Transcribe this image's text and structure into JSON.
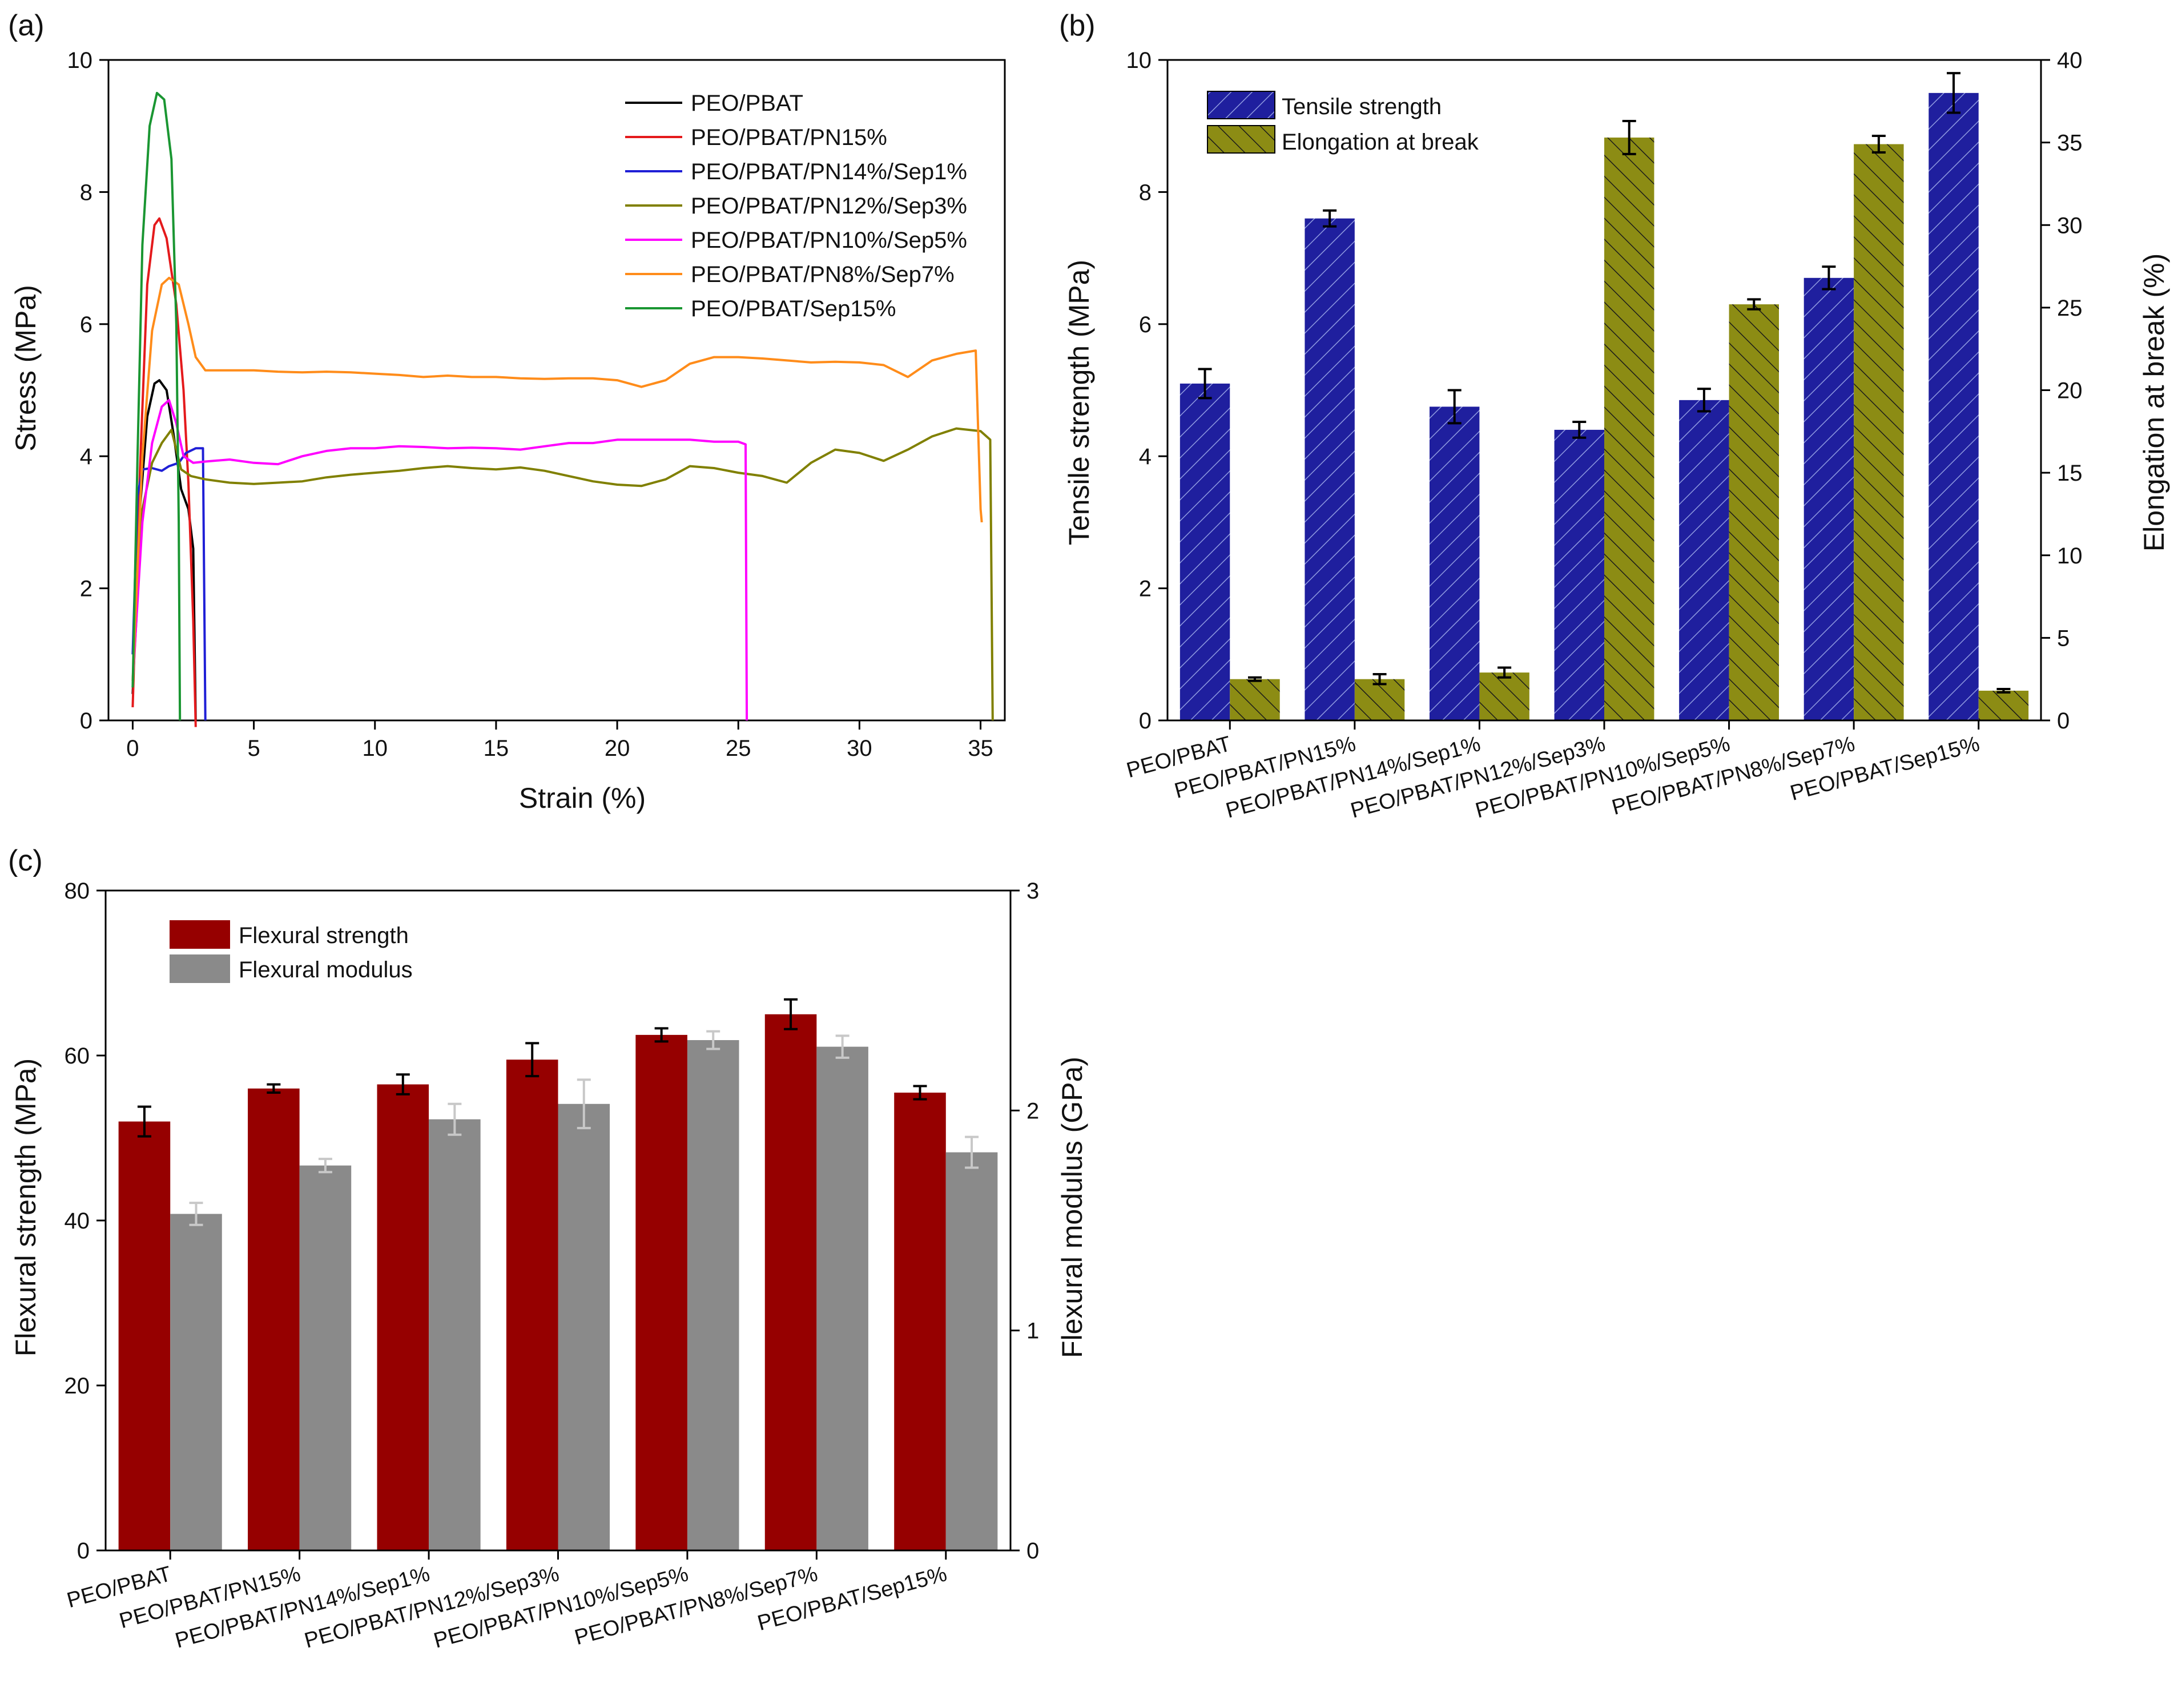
{
  "figure": {
    "background": "#ffffff"
  },
  "panel_a": {
    "label": "(a)",
    "chart_data": {
      "type": "line",
      "xlabel": "Strain (%)",
      "ylabel": "Stress (MPa)",
      "xlim": [
        -1,
        36
      ],
      "ylim": [
        0,
        10
      ],
      "xticks": [
        0,
        5,
        10,
        15,
        20,
        25,
        30,
        35
      ],
      "yticks": [
        0,
        2,
        4,
        6,
        8,
        10
      ],
      "series": [
        {
          "name": "PEO/PBAT",
          "color": "#000000",
          "points": [
            [
              0,
              0.4
            ],
            [
              0.3,
              3.2
            ],
            [
              0.6,
              4.6
            ],
            [
              0.9,
              5.1
            ],
            [
              1.1,
              5.15
            ],
            [
              1.4,
              5.0
            ],
            [
              1.7,
              4.3
            ],
            [
              2.0,
              3.5
            ],
            [
              2.3,
              3.2
            ],
            [
              2.5,
              2.6
            ],
            [
              2.6,
              0
            ]
          ]
        },
        {
          "name": "PEO/PBAT/PN15%",
          "color": "#e41a1c",
          "points": [
            [
              0,
              0.2
            ],
            [
              0.3,
              3.8
            ],
            [
              0.6,
              6.6
            ],
            [
              0.9,
              7.5
            ],
            [
              1.1,
              7.6
            ],
            [
              1.4,
              7.3
            ],
            [
              1.8,
              6.3
            ],
            [
              2.1,
              5.0
            ],
            [
              2.3,
              3.6
            ],
            [
              2.5,
              1.5
            ],
            [
              2.6,
              -0.1
            ]
          ]
        },
        {
          "name": "PEO/PBAT/PN14%/Sep1%",
          "color": "#1f1fd6",
          "points": [
            [
              0,
              1.0
            ],
            [
              0.2,
              3.4
            ],
            [
              0.4,
              3.8
            ],
            [
              0.8,
              3.82
            ],
            [
              1.2,
              3.78
            ],
            [
              1.5,
              3.85
            ],
            [
              1.9,
              3.9
            ],
            [
              2.2,
              4.05
            ],
            [
              2.6,
              4.12
            ],
            [
              2.9,
              4.12
            ],
            [
              3.0,
              0
            ]
          ]
        },
        {
          "name": "PEO/PBAT/PN12%/Sep3%",
          "color": "#808000",
          "points": [
            [
              0,
              0.5
            ],
            [
              0.4,
              3.2
            ],
            [
              0.8,
              3.9
            ],
            [
              1.2,
              4.2
            ],
            [
              1.6,
              4.4
            ],
            [
              2.0,
              3.8
            ],
            [
              2.4,
              3.7
            ],
            [
              3,
              3.65
            ],
            [
              4,
              3.6
            ],
            [
              5,
              3.58
            ],
            [
              6,
              3.6
            ],
            [
              7,
              3.62
            ],
            [
              8,
              3.68
            ],
            [
              9,
              3.72
            ],
            [
              10,
              3.75
            ],
            [
              11,
              3.78
            ],
            [
              12,
              3.82
            ],
            [
              13,
              3.85
            ],
            [
              14,
              3.82
            ],
            [
              15,
              3.8
            ],
            [
              16,
              3.83
            ],
            [
              17,
              3.78
            ],
            [
              18,
              3.7
            ],
            [
              19,
              3.62
            ],
            [
              20,
              3.57
            ],
            [
              21,
              3.55
            ],
            [
              22,
              3.65
            ],
            [
              23,
              3.85
            ],
            [
              24,
              3.82
            ],
            [
              25,
              3.75
            ],
            [
              26,
              3.7
            ],
            [
              27,
              3.6
            ],
            [
              28,
              3.9
            ],
            [
              29,
              4.1
            ],
            [
              30,
              4.05
            ],
            [
              31,
              3.93
            ],
            [
              32,
              4.1
            ],
            [
              33,
              4.3
            ],
            [
              34,
              4.42
            ],
            [
              35,
              4.38
            ],
            [
              35.4,
              4.25
            ],
            [
              35.5,
              0
            ]
          ]
        },
        {
          "name": "PEO/PBAT/PN10%/Sep5%",
          "color": "#ff00ff",
          "points": [
            [
              0,
              0.6
            ],
            [
              0.4,
              3.0
            ],
            [
              0.8,
              4.2
            ],
            [
              1.2,
              4.75
            ],
            [
              1.5,
              4.85
            ],
            [
              1.8,
              4.5
            ],
            [
              2.1,
              4.0
            ],
            [
              2.5,
              3.9
            ],
            [
              3,
              3.92
            ],
            [
              4,
              3.95
            ],
            [
              5,
              3.9
            ],
            [
              6,
              3.88
            ],
            [
              7,
              4.0
            ],
            [
              8,
              4.08
            ],
            [
              9,
              4.12
            ],
            [
              10,
              4.12
            ],
            [
              11,
              4.15
            ],
            [
              12,
              4.14
            ],
            [
              13,
              4.12
            ],
            [
              14,
              4.13
            ],
            [
              15,
              4.12
            ],
            [
              16,
              4.1
            ],
            [
              17,
              4.15
            ],
            [
              18,
              4.2
            ],
            [
              19,
              4.2
            ],
            [
              20,
              4.25
            ],
            [
              21,
              4.25
            ],
            [
              22,
              4.25
            ],
            [
              23,
              4.25
            ],
            [
              24,
              4.22
            ],
            [
              25,
              4.22
            ],
            [
              25.3,
              4.18
            ],
            [
              25.35,
              0
            ]
          ]
        },
        {
          "name": "PEO/PBAT/PN8%/Sep7%",
          "color": "#ff8c1a",
          "points": [
            [
              0,
              0.6
            ],
            [
              0.4,
              4.0
            ],
            [
              0.8,
              5.9
            ],
            [
              1.2,
              6.6
            ],
            [
              1.5,
              6.7
            ],
            [
              1.9,
              6.6
            ],
            [
              2.3,
              6.0
            ],
            [
              2.6,
              5.5
            ],
            [
              3,
              5.3
            ],
            [
              4,
              5.3
            ],
            [
              5,
              5.3
            ],
            [
              6,
              5.28
            ],
            [
              7,
              5.27
            ],
            [
              8,
              5.28
            ],
            [
              9,
              5.27
            ],
            [
              10,
              5.25
            ],
            [
              11,
              5.23
            ],
            [
              12,
              5.2
            ],
            [
              13,
              5.22
            ],
            [
              14,
              5.2
            ],
            [
              15,
              5.2
            ],
            [
              16,
              5.18
            ],
            [
              17,
              5.17
            ],
            [
              18,
              5.18
            ],
            [
              19,
              5.18
            ],
            [
              20,
              5.15
            ],
            [
              21,
              5.05
            ],
            [
              22,
              5.15
            ],
            [
              23,
              5.4
            ],
            [
              24,
              5.5
            ],
            [
              25,
              5.5
            ],
            [
              26,
              5.48
            ],
            [
              27,
              5.45
            ],
            [
              28,
              5.42
            ],
            [
              29,
              5.43
            ],
            [
              30,
              5.42
            ],
            [
              31,
              5.38
            ],
            [
              32,
              5.2
            ],
            [
              33,
              5.45
            ],
            [
              34,
              5.55
            ],
            [
              34.8,
              5.6
            ],
            [
              35,
              3.2
            ],
            [
              35.05,
              3.0
            ]
          ]
        },
        {
          "name": "PEO/PBAT/Sep15%",
          "color": "#1a9632",
          "points": [
            [
              0,
              0.5
            ],
            [
              0.2,
              4.0
            ],
            [
              0.4,
              7.2
            ],
            [
              0.7,
              9.0
            ],
            [
              1.0,
              9.5
            ],
            [
              1.3,
              9.4
            ],
            [
              1.6,
              8.5
            ],
            [
              1.8,
              6.0
            ],
            [
              1.9,
              3.0
            ],
            [
              1.95,
              0
            ]
          ]
        }
      ]
    }
  },
  "panel_b": {
    "label": "(b)",
    "chart_data": {
      "type": "bar",
      "categories": [
        "PEO/PBAT",
        "PEO/PBAT/PN15%",
        "PEO/PBAT/PN14%/Sep1%",
        "PEO/PBAT/PN12%/Sep3%",
        "PEO/PBAT/PN10%/Sep5%",
        "PEO/PBAT/PN8%/Sep7%",
        "PEO/PBAT/Sep15%"
      ],
      "ylabel_left": "Tensile strength (MPa)",
      "ylabel_right": "Elongation at break (%)",
      "ylim_left": [
        0,
        10
      ],
      "ylim_right": [
        0,
        40
      ],
      "yticks_left": [
        0,
        2,
        4,
        6,
        8,
        10
      ],
      "yticks_right": [
        0,
        5,
        10,
        15,
        20,
        25,
        30,
        35,
        40
      ],
      "series": [
        {
          "name": "Tensile strength",
          "axis": "left",
          "color": "#1f1f9e",
          "values": [
            5.1,
            7.6,
            4.75,
            4.4,
            4.85,
            6.7,
            9.5
          ],
          "errors": [
            0.22,
            0.12,
            0.25,
            0.12,
            0.17,
            0.17,
            0.3
          ]
        },
        {
          "name": "Elongation at break",
          "axis": "right",
          "color": "#8c8c14",
          "values": [
            2.5,
            2.5,
            2.9,
            35.3,
            25.2,
            34.9,
            1.8
          ],
          "errors": [
            0.1,
            0.3,
            0.3,
            1.0,
            0.3,
            0.5,
            0.1
          ]
        }
      ]
    }
  },
  "panel_c": {
    "label": "(c)",
    "chart_data": {
      "type": "bar",
      "categories": [
        "PEO/PBAT",
        "PEO/PBAT/PN15%",
        "PEO/PBAT/PN14%/Sep1%",
        "PEO/PBAT/PN12%/Sep3%",
        "PEO/PBAT/PN10%/Sep5%",
        "PEO/PBAT/PN8%/Sep7%",
        "PEO/PBAT/Sep15%"
      ],
      "ylabel_left": "Flexural strength (MPa)",
      "ylabel_right": "Flexural modulus (GPa)",
      "ylim_left": [
        0,
        80
      ],
      "ylim_right": [
        0,
        3
      ],
      "yticks_left": [
        0,
        20,
        40,
        60,
        80
      ],
      "yticks_right": [
        0,
        1,
        2,
        3
      ],
      "series": [
        {
          "name": "Flexural strength",
          "axis": "left",
          "color": "#960000",
          "values": [
            52.0,
            56.0,
            56.5,
            59.5,
            62.5,
            65.0,
            55.5
          ],
          "errors": [
            1.8,
            0.5,
            1.2,
            2.0,
            0.8,
            1.8,
            0.8
          ]
        },
        {
          "name": "Flexural modulus",
          "axis": "right",
          "color": "#8a8a8a",
          "values": [
            1.53,
            1.75,
            1.96,
            2.03,
            2.32,
            2.29,
            1.81
          ],
          "errors": [
            0.05,
            0.03,
            0.07,
            0.11,
            0.04,
            0.05,
            0.07
          ]
        }
      ]
    }
  }
}
